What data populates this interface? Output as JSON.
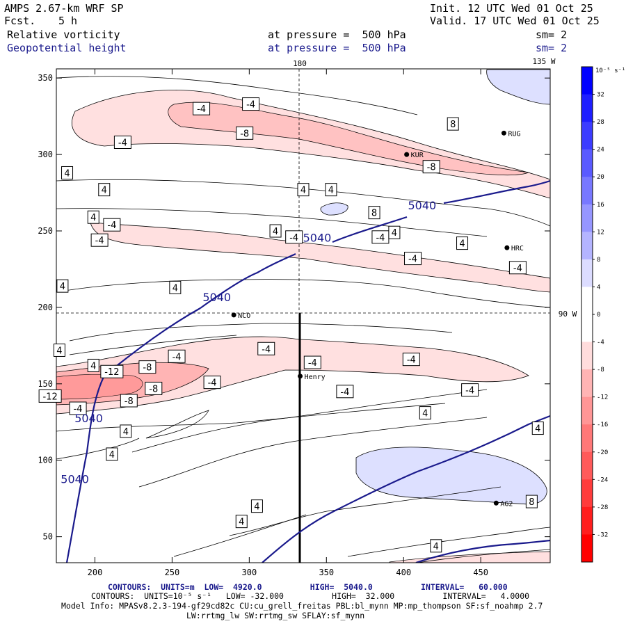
{
  "header": {
    "model": "AMPS 2.67-km WRF SP",
    "fcst_label": "Fcst.",
    "fcst_value": "5 h",
    "init": "Init. 12 UTC Wed 01 Oct 25",
    "valid": "Valid. 17 UTC Wed 01 Oct 25",
    "field1": "Relative vorticity",
    "field2": "Geopotential height",
    "pressure1": "at pressure =  500 hPa",
    "pressure2": "at pressure =  500 hPa",
    "sm1": "sm= 2",
    "sm2": "sm= 2"
  },
  "chart_data": {
    "type": "contour",
    "x_ticks": [
      "200",
      "250",
      "300",
      "350",
      "400",
      "450"
    ],
    "y_ticks": [
      "50",
      "100",
      "150",
      "200",
      "250",
      "300",
      "350"
    ],
    "xlim": [
      175,
      495
    ],
    "ylim": [
      33,
      356
    ],
    "meridian_labels": {
      "top_180": "180",
      "top_135w": "135 W",
      "right_90w": "90 W"
    },
    "colorbar": {
      "unit": "10⁻⁵ s⁻¹",
      "levels": [
        "32",
        "28",
        "24",
        "20",
        "16",
        "12",
        "8",
        "4",
        "0",
        "-4",
        "-8",
        "-12",
        "-16",
        "-20",
        "-24",
        "-28",
        "-32"
      ],
      "colors": [
        "#0000ff",
        "#1e1eff",
        "#3c3cff",
        "#5a5aff",
        "#7878ff",
        "#9696ff",
        "#b4b4ff",
        "#dcdcff",
        "#ffffff",
        "#ffffff",
        "#ffdcdc",
        "#ffb4b4",
        "#ff9696",
        "#ff7878",
        "#ff5a5a",
        "#ff3c3c",
        "#ff1e1e",
        "#ff0000"
      ]
    },
    "stations": [
      {
        "name": "NCO",
        "x": 290,
        "y": 195
      },
      {
        "name": "Henry",
        "x": 333,
        "y": 155
      },
      {
        "name": "HRC",
        "x": 467,
        "y": 239
      },
      {
        "name": "RUG",
        "x": 465,
        "y": 314
      },
      {
        "name": "KUR",
        "x": 402,
        "y": 300
      },
      {
        "name": "AG2",
        "x": 460,
        "y": 72
      }
    ],
    "height_labels": [
      {
        "text": "5040",
        "x": 279,
        "y": 204
      },
      {
        "text": "5040",
        "x": 344,
        "y": 243
      },
      {
        "text": "5040",
        "x": 412,
        "y": 264
      },
      {
        "text": "5040",
        "x": 196,
        "y": 125
      },
      {
        "text": "5040",
        "x": 187,
        "y": 85
      }
    ],
    "vort_labels": [
      {
        "text": "-4",
        "x": 301,
        "y": 333
      },
      {
        "text": "-4",
        "x": 269,
        "y": 330
      },
      {
        "text": "-4",
        "x": 218,
        "y": 308
      },
      {
        "text": "-8",
        "x": 297,
        "y": 314
      },
      {
        "text": "8",
        "x": 432,
        "y": 320
      },
      {
        "text": "-8",
        "x": 418,
        "y": 292
      },
      {
        "text": "4",
        "x": 182,
        "y": 288
      },
      {
        "text": "4",
        "x": 206,
        "y": 277
      },
      {
        "text": "4",
        "x": 335,
        "y": 277
      },
      {
        "text": "4",
        "x": 353,
        "y": 277
      },
      {
        "text": "8",
        "x": 381,
        "y": 262
      },
      {
        "text": "4",
        "x": 199,
        "y": 259
      },
      {
        "text": "-4",
        "x": 211,
        "y": 254
      },
      {
        "text": "4",
        "x": 317,
        "y": 250
      },
      {
        "text": "-4",
        "x": 329,
        "y": 246
      },
      {
        "text": "-4",
        "x": 203,
        "y": 244
      },
      {
        "text": "-4",
        "x": 385,
        "y": 246
      },
      {
        "text": "4",
        "x": 394,
        "y": 249
      },
      {
        "text": "4",
        "x": 438,
        "y": 242
      },
      {
        "text": "-4",
        "x": 406,
        "y": 232
      },
      {
        "text": "-4",
        "x": 474,
        "y": 226
      },
      {
        "text": "4",
        "x": 179,
        "y": 214
      },
      {
        "text": "4",
        "x": 252,
        "y": 213
      },
      {
        "text": "4",
        "x": 177,
        "y": 172
      },
      {
        "text": "-4",
        "x": 311,
        "y": 173
      },
      {
        "text": "-4",
        "x": 253,
        "y": 168
      },
      {
        "text": "-4",
        "x": 405,
        "y": 166
      },
      {
        "text": "-4",
        "x": 341,
        "y": 164
      },
      {
        "text": "-8",
        "x": 234,
        "y": 161
      },
      {
        "text": "-12",
        "x": 211,
        "y": 158
      },
      {
        "text": "4",
        "x": 199,
        "y": 162
      },
      {
        "text": "-4",
        "x": 276,
        "y": 151
      },
      {
        "text": "-8",
        "x": 238,
        "y": 147
      },
      {
        "text": "-12",
        "x": 171,
        "y": 142
      },
      {
        "text": "-8",
        "x": 222,
        "y": 139
      },
      {
        "text": "-4",
        "x": 189,
        "y": 134
      },
      {
        "text": "-4",
        "x": 362,
        "y": 145
      },
      {
        "text": "-4",
        "x": 443,
        "y": 146
      },
      {
        "text": "4",
        "x": 414,
        "y": 131
      },
      {
        "text": "4",
        "x": 220,
        "y": 119
      },
      {
        "text": "4",
        "x": 211,
        "y": 104
      },
      {
        "text": "4",
        "x": 487,
        "y": 121
      },
      {
        "text": "8",
        "x": 483,
        "y": 73
      },
      {
        "text": "4",
        "x": 305,
        "y": 70
      },
      {
        "text": "4",
        "x": 295,
        "y": 60
      },
      {
        "text": "4",
        "x": 421,
        "y": 44
      }
    ]
  },
  "footer": {
    "line1": "CONTOURS:  UNITS=m  LOW=  4920.0          HIGH=  5040.0          INTERVAL=   60.000",
    "line2": "CONTOURS:  UNITS=10⁻⁵ s⁻¹   LOW= -32.000          HIGH=  32.000          INTERVAL=   4.0000",
    "line3": "Model Info: MPASv8.2.3-194-gf29cd82c CU:cu_grell_freitas PBL:bl_mynn MP:mp_thompson SF:sf_noahmp 2.7",
    "line4": "LW:rrtmg_lw SW:rrtmg_sw SFLAY:sf_mynn"
  },
  "colors": {
    "height_contour": "#1a1a8c",
    "vort_contour": "#000000"
  }
}
